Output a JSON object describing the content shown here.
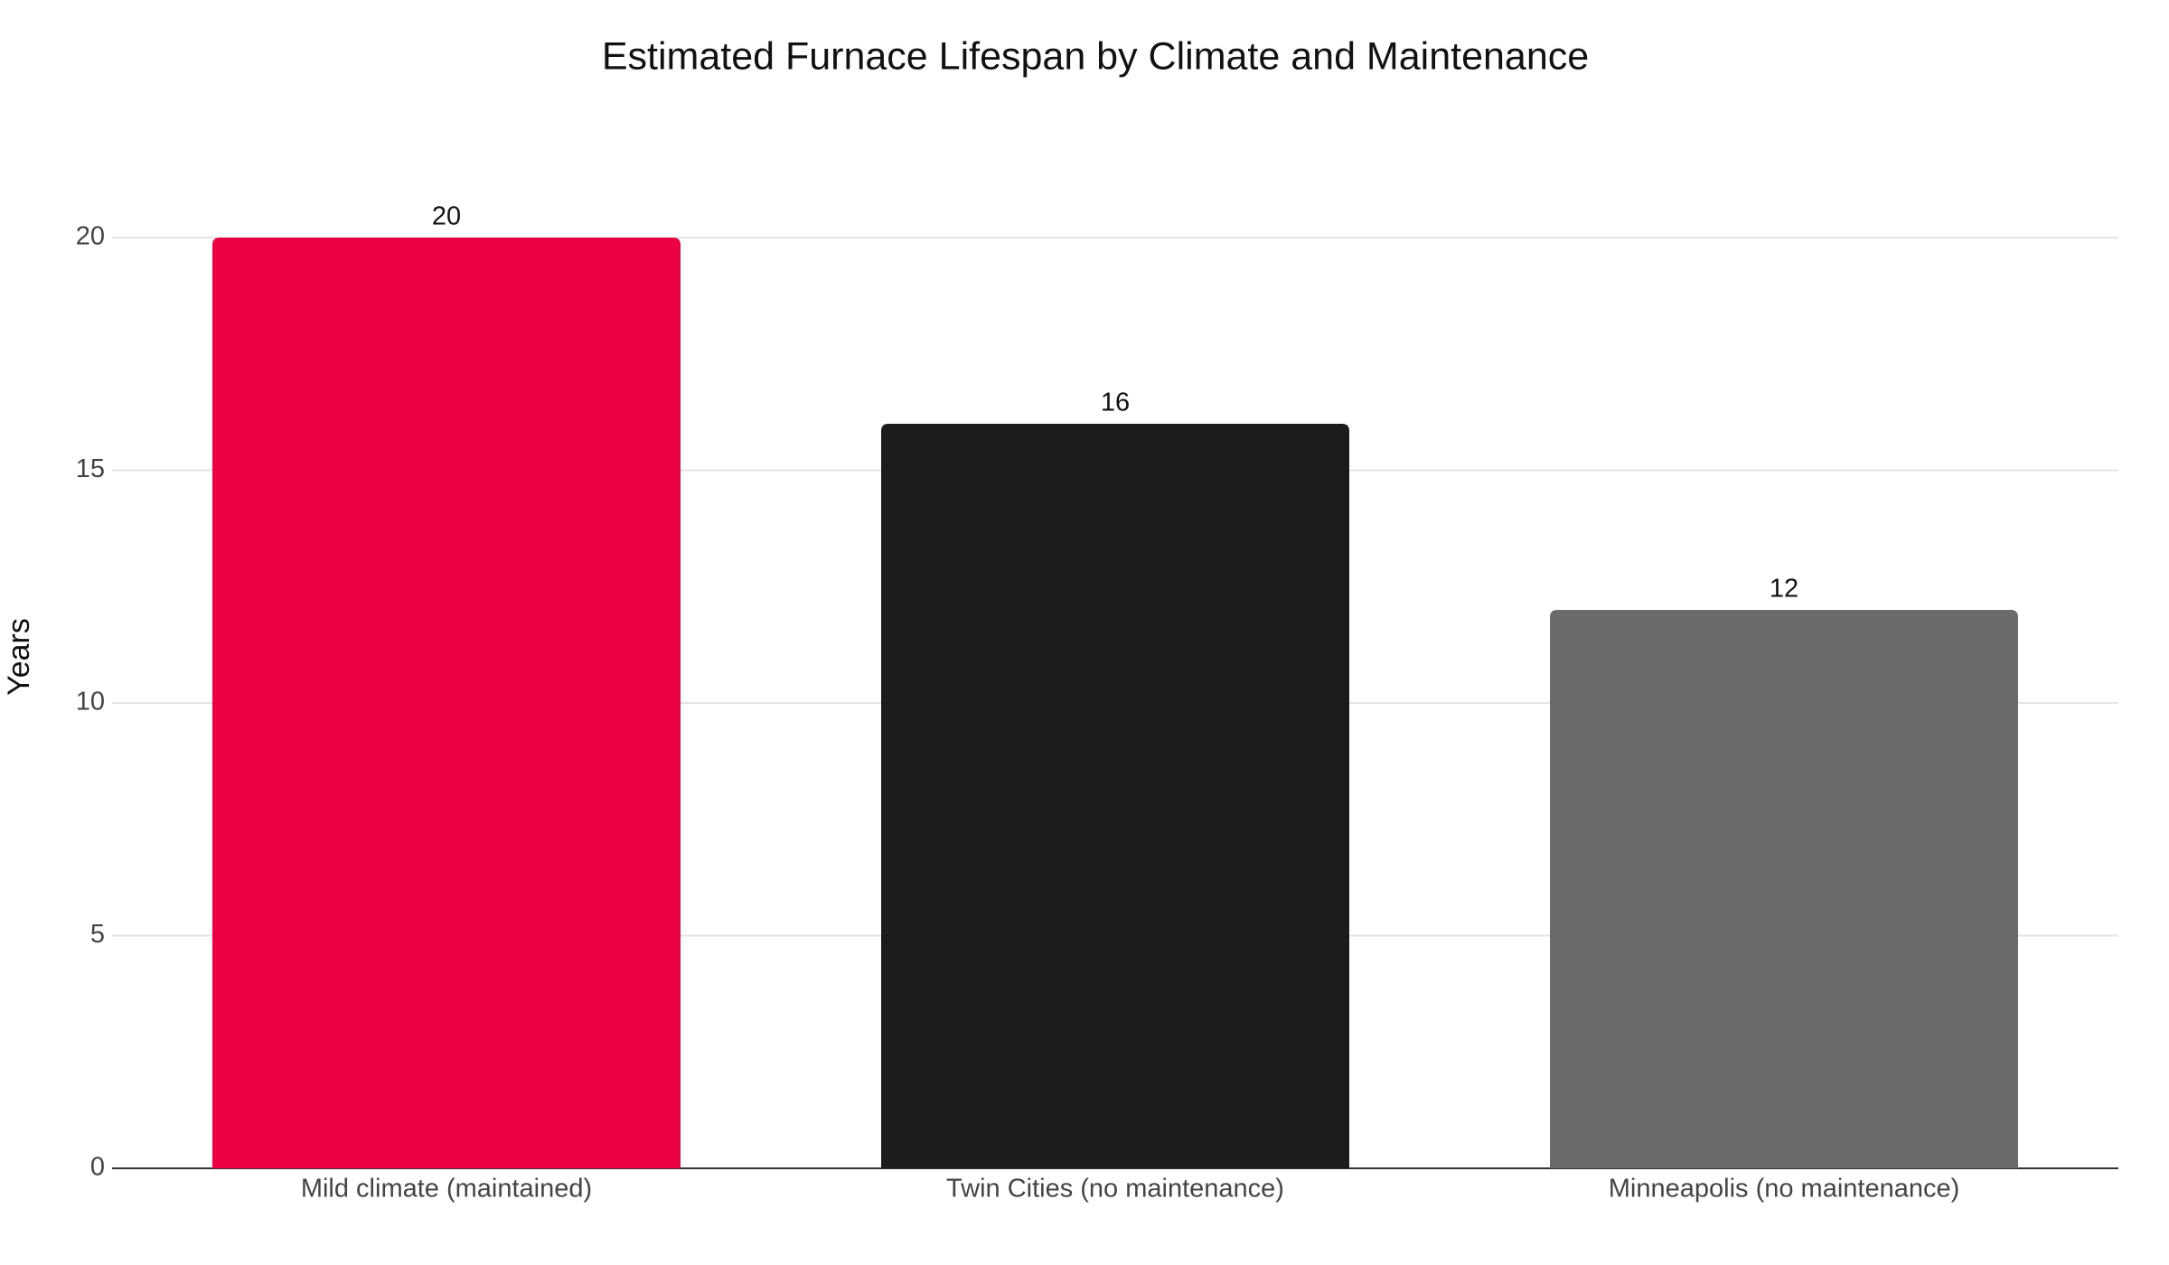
{
  "chart_data": {
    "type": "bar",
    "title": "Estimated Furnace Lifespan by Climate and Maintenance",
    "y_label": "Years",
    "categories": [
      "Mild climate (maintained)",
      "Twin Cities (no maintenance)",
      "Minneapolis (no maintenance)"
    ],
    "values": [
      20,
      16,
      12
    ],
    "colors": [
      "#ec0044",
      "#1c1c1c",
      "#6b6b6b"
    ],
    "ylim": [
      0,
      20
    ],
    "yticks": [
      0,
      5,
      10,
      15,
      20
    ],
    "grid": true
  }
}
